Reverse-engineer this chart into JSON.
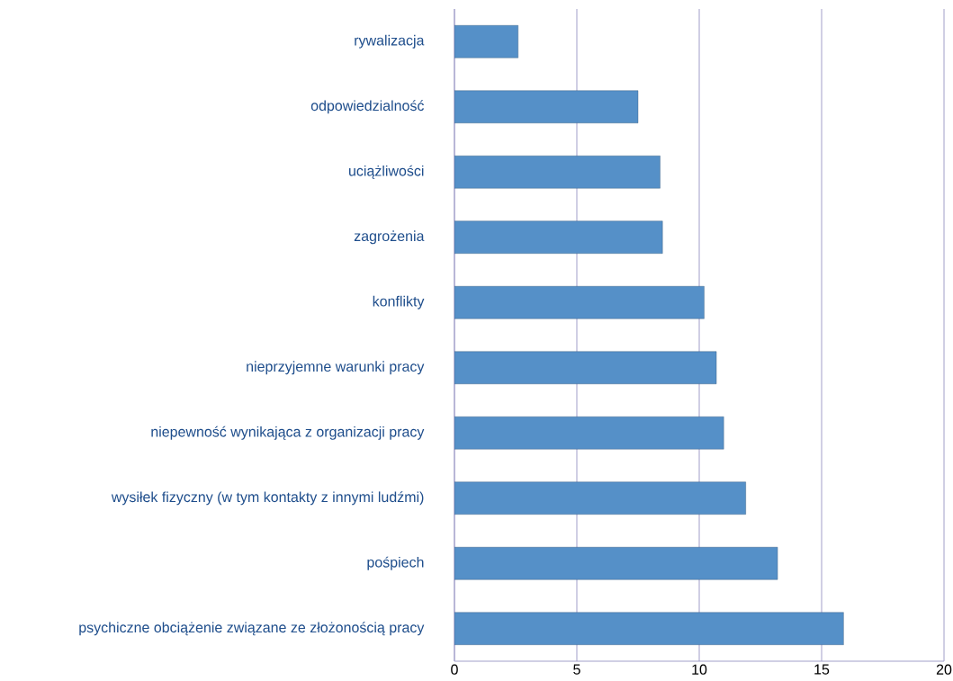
{
  "chart_data": {
    "type": "bar",
    "orientation": "horizontal",
    "categories": [
      "rywalizacja",
      "odpowiedzialność",
      "uciążliwości",
      "zagrożenia",
      "konflikty",
      "nieprzyjemne warunki pracy",
      "niepewność wynikająca z organizacji pracy",
      "wysiłek fizyczny (w tym kontakty z innymi ludźmi)",
      "pośpiech",
      "psychiczne obciążenie związane ze złożonością pracy"
    ],
    "values": [
      2.6,
      7.5,
      8.4,
      8.5,
      10.2,
      10.7,
      11.0,
      11.9,
      13.2,
      15.9
    ],
    "color": "#5590c8",
    "xlim": [
      0,
      20
    ],
    "xticks": [
      0,
      5,
      10,
      15,
      20
    ],
    "grid": "x"
  }
}
